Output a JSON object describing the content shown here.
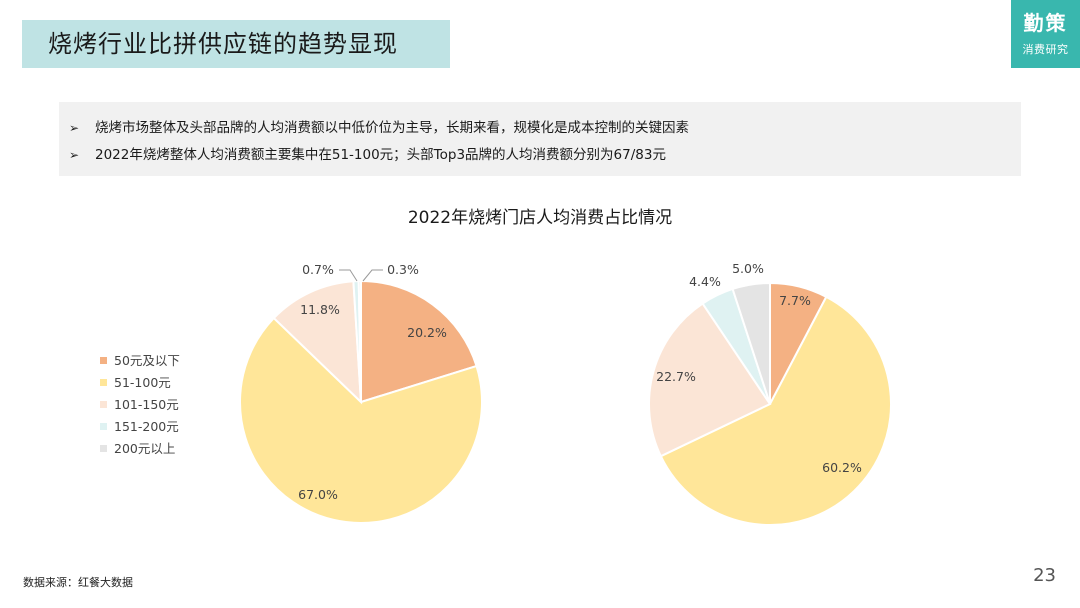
{
  "header": {
    "title": "烧烤行业比拼供应链的趋势显现"
  },
  "logo": {
    "main": "勤策",
    "sub": "消费研究"
  },
  "bullets": [
    "烧烤市场整体及头部品牌的人均消费额以中低价位为主导，长期来看，规模化是成本控制的关键因素",
    "2022年烧烤整体人均消费额主要集中在51-100元；头部Top3品牌的人均消费额分别为67/83元"
  ],
  "bullet_marker": "➢",
  "chart_data": {
    "type": "pie",
    "title": "2022年烧烤门店人均消费占比情况",
    "categories": [
      "50元及以下",
      "51-100元",
      "101-150元",
      "151-200元",
      "200元以上"
    ],
    "colors": [
      "#f4b183",
      "#ffe699",
      "#fbe5d6",
      "#dff2f2",
      "#e4e4e4"
    ],
    "series": [
      {
        "values": [
          20.2,
          67.0,
          11.8,
          0.7,
          0.3
        ],
        "labels": [
          "20.2%",
          "67.0%",
          "11.8%",
          "0.7%",
          "0.3%"
        ]
      },
      {
        "values": [
          7.7,
          60.2,
          22.7,
          4.4,
          5.0
        ],
        "labels": [
          "7.7%",
          "60.2%",
          "22.7%",
          "4.4%",
          "5.0%"
        ]
      }
    ],
    "legend_position": "left"
  },
  "footer": {
    "source": "数据来源：红餐大数据",
    "page_number": "23"
  }
}
